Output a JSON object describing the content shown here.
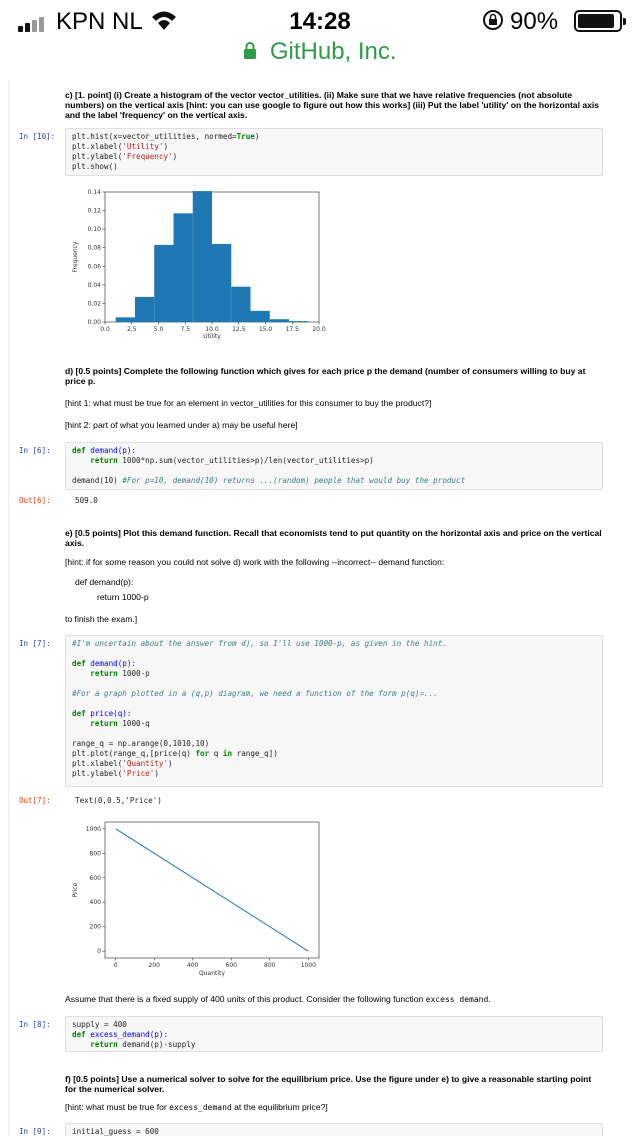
{
  "status_bar": {
    "carrier": "KPN NL",
    "time": "14:28",
    "battery": "90%",
    "battery_fraction": 0.9
  },
  "browser": {
    "site": "GitHub, Inc."
  },
  "notebook": {
    "q_c": {
      "bold": "c) [1. point] (i) Create a histogram of the vector vector_utilities. (ii) Make sure that we have relative frequencies (not absolute numbers) on the vertical axis [hint: you can use google to figure out how this works] (iii) Put the label 'utility' on the horizontal axis and the label 'frequency' on the vertical axis."
    },
    "in10": {
      "prompt": "In [10]:",
      "l1": "plt.hist(x=vector_utilities, normed=",
      "l1b": "True",
      "l1c": ")",
      "l2": "plt.xlabel(",
      "l2s": "'Utility'",
      "l2c": ")",
      "l3": "plt.ylabel(",
      "l3s": "'Frequency'",
      "l3c": ")",
      "l4": "plt.show()"
    },
    "q_d": {
      "bold": "d) [0.5 points] Complete the following function which gives for each price p the demand (number of consumers willing to buy at price p.",
      "hint1": "[hint 1: what must be true for an element in vector_utilities for this consumer to buy the product?]",
      "hint2": "[hint 2: part of what you learned under a) may be useful here]"
    },
    "in6": {
      "prompt": "In [6]:",
      "l1a": "def",
      "l1b": " demand(p):",
      "l2a": "return",
      "l2b": " 1000*np.sum(vector_utilities>p)/len(vector_utilities>p)",
      "l3a": "demand(10) ",
      "l3b": "#For p=10, demand(10) returns ...(random) people that would buy the product"
    },
    "out6": {
      "prompt": "Out[6]:",
      "value": "509.0"
    },
    "q_e": {
      "bold": "e) [0.5 points] Plot this demand function. Recall that economists tend to put quantity on the horizontal axis and price on the vertical axis.",
      "hint": "[hint: if for some reason you could not solve d) work with the following --incorrect-- demand function:",
      "code1": "def demand(p):",
      "code2": "return 1000-p",
      "finish": "to finish the exam.]"
    },
    "in7": {
      "prompt": "In [7]:",
      "c1": "#I'm uncertain about the answer from d), so I'll use 1000-p, as given in the hint.",
      "d1a": "def",
      "d1b": " demand(p):",
      "r1a": "return",
      "r1b": " 1000-p",
      "c2": "#For a graph plotted in a (q,p) diagram, we need a function of the form p(q)=...",
      "d2a": "def",
      "d2b": " price(q):",
      "r2a": "return",
      "r2b": " 1000-q",
      "l8": "range_q = np.arange(0,1010,10)",
      "l9a": "plt.plot(range_q,[price(q) ",
      "l9b": "for",
      "l9c": " q ",
      "l9d": "in",
      "l9e": " range_q])",
      "l10a": "plt.xlabel(",
      "l10b": "'Quantity'",
      "l10c": ")",
      "l11a": "plt.ylabel(",
      "l11b": "'Price'",
      "l11c": ")"
    },
    "out7": {
      "prompt": "Out[7]:",
      "value": "Text(0,0.5,'Price')"
    },
    "supply_text": {
      "a": "Assume that there is a fixed supply of 400 units of this product. Consider the following function ",
      "b": "excess demand",
      "c": "."
    },
    "in8": {
      "prompt": "In [8]:",
      "l1": "supply = 400",
      "l2a": "def",
      "l2b": " excess_demand(p):",
      "l3a": "return",
      "l3b": " demand(p)-supply"
    },
    "q_f": {
      "bold": "f) [0.5 points] Use a numerical solver to solve for the equilibrium price. Use the figure under e) to give a reasonable starting point for the numerical solver.",
      "hint_a": "[hint: what must be true for ",
      "hint_b": "excess_demand",
      "hint_c": " at the equilibrium price?]"
    },
    "in9": {
      "prompt": "In [9]:",
      "l1": "initial_guess = 600"
    }
  },
  "chart_data": [
    {
      "type": "bar",
      "title": "",
      "xlabel": "Utility",
      "ylabel": "Frequency",
      "xlim": [
        0,
        20
      ],
      "ylim": [
        0,
        0.14
      ],
      "xticks": [
        "0.0",
        "2.5",
        "5.0",
        "7.5",
        "10.0",
        "12.5",
        "15.0",
        "17.5",
        "20.0"
      ],
      "yticks": [
        "0.00",
        "0.02",
        "0.04",
        "0.06",
        "0.08",
        "0.10",
        "0.12",
        "0.14"
      ],
      "bins": [
        {
          "x0": 1.0,
          "x1": 2.8,
          "value": 0.005
        },
        {
          "x0": 2.8,
          "x1": 4.6,
          "value": 0.027
        },
        {
          "x0": 4.6,
          "x1": 6.4,
          "value": 0.083
        },
        {
          "x0": 6.4,
          "x1": 8.2,
          "value": 0.117
        },
        {
          "x0": 8.2,
          "x1": 10.0,
          "value": 0.141
        },
        {
          "x0": 10.0,
          "x1": 11.8,
          "value": 0.084
        },
        {
          "x0": 11.8,
          "x1": 13.6,
          "value": 0.038
        },
        {
          "x0": 13.6,
          "x1": 15.4,
          "value": 0.012
        },
        {
          "x0": 15.4,
          "x1": 17.2,
          "value": 0.003
        },
        {
          "x0": 17.2,
          "x1": 19.0,
          "value": 0.001
        }
      ],
      "color": "#1f77b4"
    },
    {
      "type": "line",
      "title": "",
      "xlabel": "Quantity",
      "ylabel": "Price",
      "xlim": [
        0,
        1000
      ],
      "ylim": [
        0,
        1000
      ],
      "xticks": [
        "0",
        "200",
        "400",
        "600",
        "800",
        "1000"
      ],
      "yticks": [
        "0",
        "200",
        "400",
        "600",
        "800",
        "1000"
      ],
      "x": [
        0,
        1000
      ],
      "y": [
        1000,
        0
      ],
      "color": "#1f77b4"
    }
  ]
}
